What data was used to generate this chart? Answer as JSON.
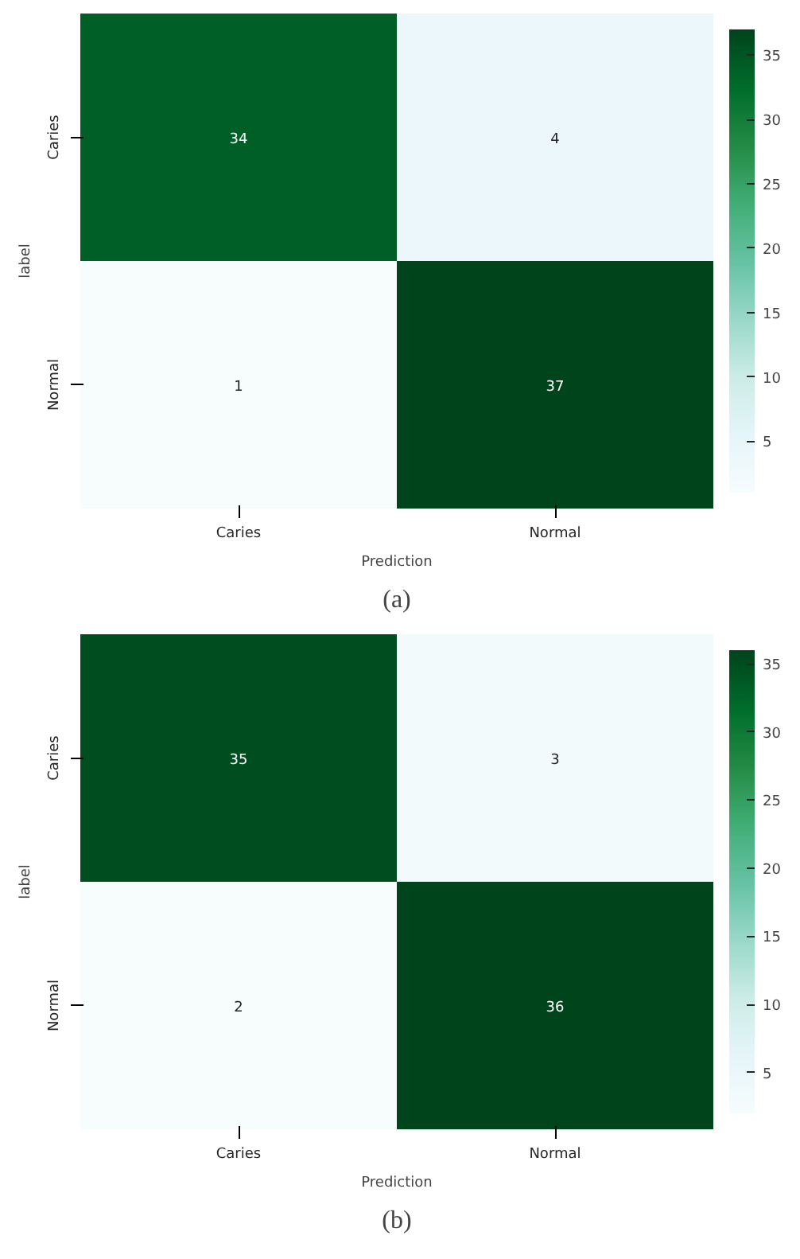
{
  "chart_data": [
    {
      "type": "heatmap",
      "xlabel": "Prediction",
      "ylabel": "label",
      "categories": [
        "Caries",
        "Normal"
      ],
      "y_categories": [
        "Caries",
        "Normal"
      ],
      "cells": [
        [
          34,
          4
        ],
        [
          1,
          37
        ]
      ],
      "data_labels": true,
      "clim": [
        1,
        37
      ],
      "cticks": [
        5,
        10,
        15,
        20,
        25,
        30,
        35
      ],
      "annotations": [
        "(a)"
      ]
    },
    {
      "type": "heatmap",
      "xlabel": "Prediction",
      "ylabel": "label",
      "categories": [
        "Caries",
        "Normal"
      ],
      "y_categories": [
        "Caries",
        "Normal"
      ],
      "cells": [
        [
          35,
          3
        ],
        [
          2,
          36
        ]
      ],
      "data_labels": true,
      "clim": [
        2,
        36
      ],
      "cticks": [
        5,
        10,
        15,
        20,
        25,
        30,
        35
      ],
      "annotations": [
        "(b)"
      ]
    }
  ]
}
